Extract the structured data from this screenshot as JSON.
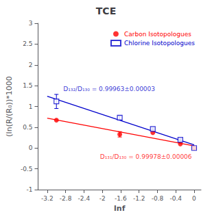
{
  "chart_data": {
    "type": "scatter",
    "title": "TCE",
    "xlabel": "lnf",
    "ylabel": "(ln(R/(R₀))*1000",
    "xlim": [
      -3.4,
      0.15
    ],
    "ylim": [
      -1.0,
      3.0
    ],
    "xticks": [
      -3.2,
      -2.8,
      -2.4,
      -2.0,
      -1.6,
      -1.2,
      -0.8,
      -0.4,
      0
    ],
    "yticks": [
      -1,
      -0.5,
      0,
      0.5,
      1,
      1.5,
      2,
      2.5,
      3
    ],
    "grid": false,
    "legend": "upper right",
    "series": [
      {
        "type": "line",
        "color": "#FF0000",
        "x": [
          -3.2,
          0.0
        ],
        "values": [
          0.71768,
          0.05178
        ]
      },
      {
        "type": "line",
        "color": "#0000CC",
        "x": [
          -3.2,
          0.0
        ],
        "values": [
          1.24381,
          0.0779
        ]
      },
      {
        "type": "scatter",
        "name": "Carbon Isotopologues",
        "color": "#FF0000",
        "marker": "circle",
        "x": [
          -3.0,
          -1.62,
          -0.9,
          -0.3,
          0.0
        ],
        "values": [
          0.67,
          0.33,
          0.37,
          0.1,
          0.0
        ],
        "yerr": [
          0.0,
          0.065,
          0.0,
          0.0,
          0.0
        ]
      },
      {
        "type": "scatter",
        "name": "Chlorine Isotopologues",
        "color": "#0000CC",
        "marker": "square",
        "x": [
          -3.0,
          -1.62,
          -0.9,
          -0.3,
          0.0
        ],
        "values": [
          1.12,
          0.73,
          0.46,
          0.2,
          0.0
        ],
        "yerr": [
          0.17,
          0.04,
          0.02,
          0.02,
          0.0
        ]
      }
    ],
    "annotations": [
      {
        "text": "D₁₃₂/D₁₃₀ = 0.99963±0.00003",
        "x": -2.85,
        "y": 1.35,
        "color": "#0000CC"
      },
      {
        "text": "D₁₃₁/D₁₃₀ = 0.99978±0.00006",
        "x": -2.05,
        "y": -0.28,
        "color": "#FF0000"
      }
    ]
  }
}
